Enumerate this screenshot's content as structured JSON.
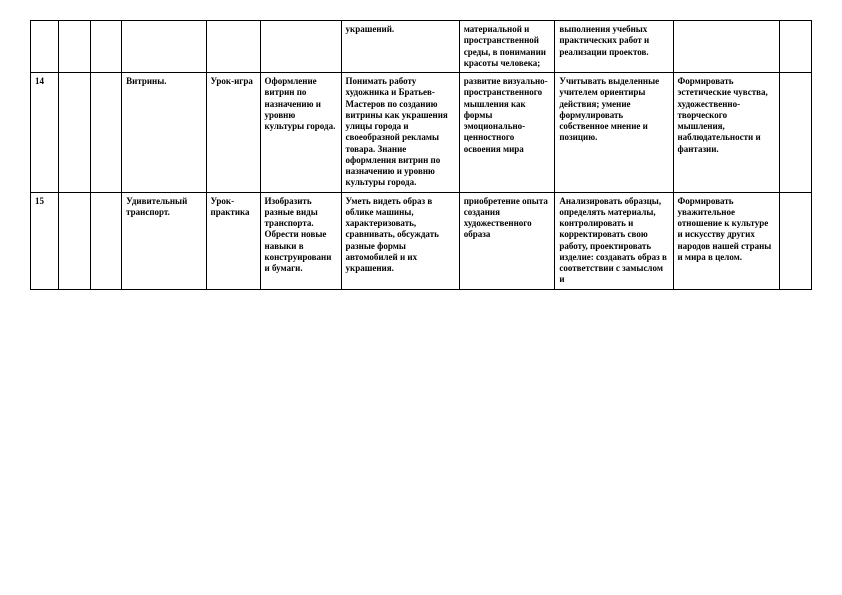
{
  "table": {
    "columns": 11,
    "rows": [
      {
        "cells": {
          "c1": "",
          "c2": "",
          "c3": "",
          "c4": "",
          "c5": "",
          "c6": "",
          "c7": "украшений.",
          "c8": "материальной и пространственной среды, в понимании красоты человека;",
          "c9": "выполнения учебных практических работ и реализации проектов.",
          "c10": "",
          "c11": ""
        }
      },
      {
        "cells": {
          "c1": "14",
          "c2": "",
          "c3": "",
          "c4": "Витрины.",
          "c5": "Урок-игра",
          "c6": "Оформление витрин по назначению и уровню культуры города.",
          "c7": "Понимать работу художника и Братьев-Мастеров по созданию витрины как украшения улицы города и своеобразной рекламы товара. Знание оформления витрин по назначению и уровню культуры города.",
          "c8": "развитие визуально-пространственного мышления как формы эмоционально-ценностного освоения мира",
          "c9": "Учитывать выделенные учителем ориентиры действия; умение формулировать собственное мнение и позицию.",
          "c10": "Формировать эстетические чувства, художественно-творческого мышления, наблюдательности и фантазии.",
          "c11": ""
        }
      },
      {
        "cells": {
          "c1": "15",
          "c2": "",
          "c3": "",
          "c4": "Удивительный транспорт.",
          "c5": "Урок-практика",
          "c6": "Изобразить разные виды транспорта. Обрести новые навыки в конструировании бумаги.",
          "c7": "Уметь видеть образ в облике машины, характеризовать, сравнивать, обсуждать разные формы автомобилей и их украшения.",
          "c8": "приобретение опыта создания художественного образа",
          "c9": "Анализировать образцы, определять материалы, контролировать и корректировать свою работу, проектировать изделие: создавать образ в соответствии с замыслом и",
          "c10": "Формировать уважительное отношение к культуре и искусству других народов нашей страны и мира в целом.",
          "c11": ""
        }
      }
    ]
  }
}
